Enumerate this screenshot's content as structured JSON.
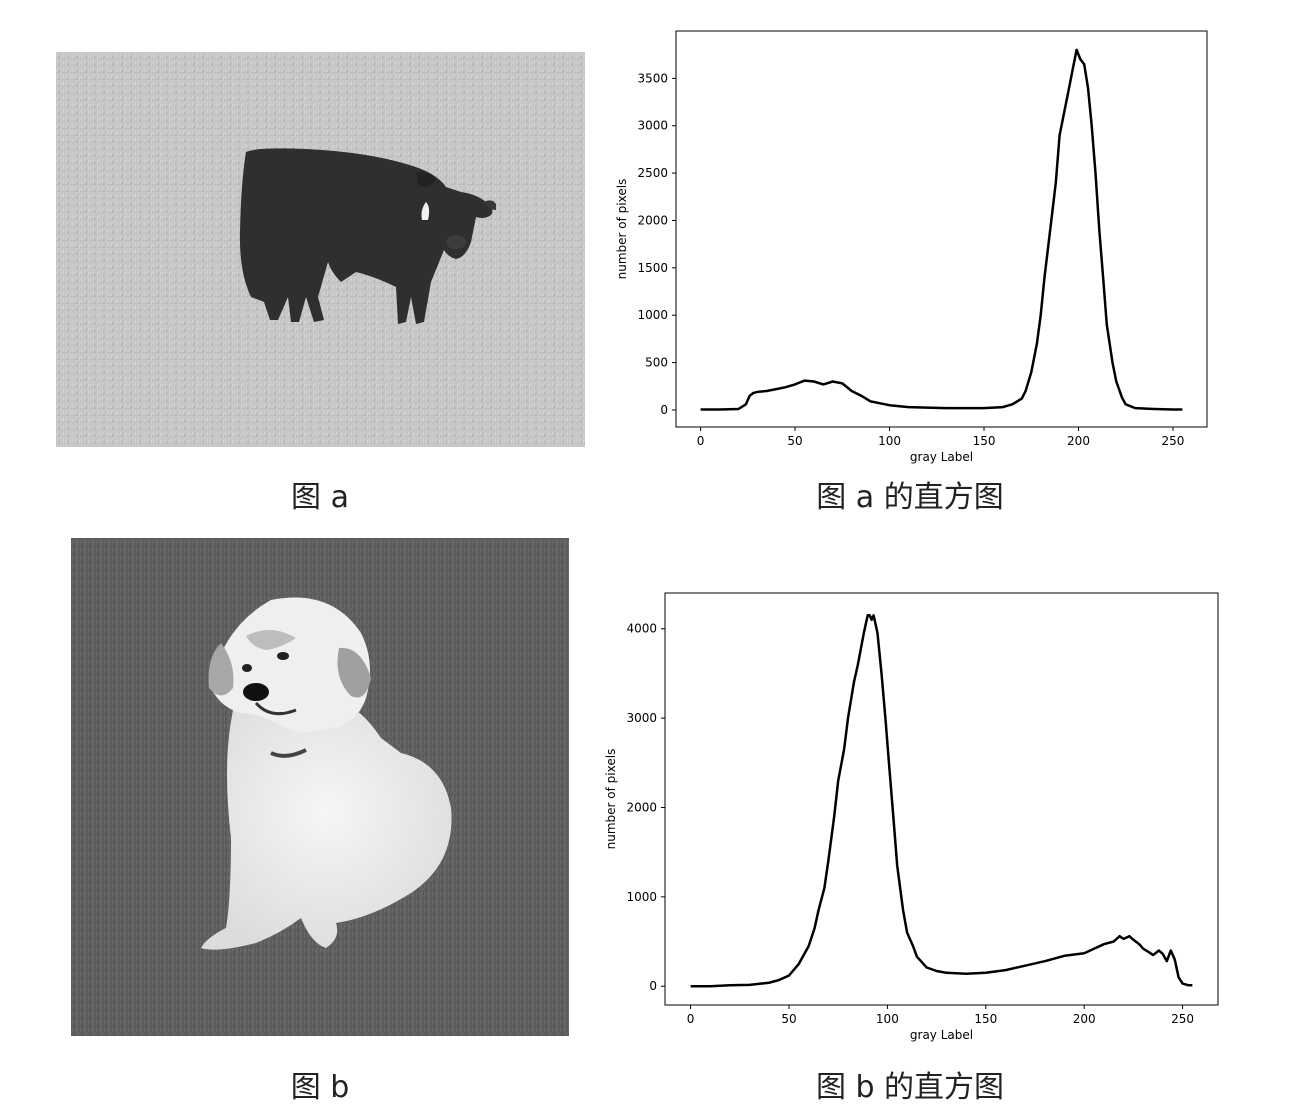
{
  "figures": [
    {
      "caption": "图 a",
      "hist_caption": "图 a 的直方图",
      "photo_icon": "cow-in-field-grayscale-photo"
    },
    {
      "caption": "图 b",
      "hist_caption": "图 b 的直方图",
      "photo_icon": "puppy-on-grass-grayscale-photo"
    }
  ],
  "chart_data": [
    {
      "type": "line",
      "xlabel": "gray Label",
      "ylabel": "number of pixels",
      "xlim": [
        -13,
        268
      ],
      "ylim": [
        -180,
        4000
      ],
      "xticks": [
        0,
        50,
        100,
        150,
        200,
        250
      ],
      "yticks": [
        0,
        500,
        1000,
        1500,
        2000,
        2500,
        3000,
        3500
      ],
      "grid": false,
      "line_color": "#000000",
      "series": [
        {
          "x": [
            0,
            10,
            20,
            24,
            26,
            28,
            30,
            35,
            40,
            45,
            50,
            55,
            60,
            65,
            70,
            75,
            80,
            85,
            90,
            95,
            100,
            110,
            120,
            130,
            140,
            150,
            160,
            165,
            170,
            172,
            175,
            178,
            180,
            182,
            185,
            188,
            190,
            193,
            195,
            197,
            199,
            201,
            203,
            205,
            207,
            209,
            211,
            213,
            215,
            218,
            220,
            223,
            225,
            230,
            240,
            250,
            255
          ],
          "y": [
            5,
            5,
            10,
            60,
            150,
            180,
            190,
            200,
            220,
            240,
            270,
            310,
            300,
            270,
            300,
            280,
            200,
            150,
            90,
            70,
            50,
            30,
            25,
            20,
            20,
            20,
            30,
            60,
            120,
            200,
            400,
            700,
            1000,
            1400,
            1900,
            2400,
            2900,
            3200,
            3400,
            3600,
            3800,
            3700,
            3650,
            3400,
            3000,
            2500,
            1900,
            1400,
            900,
            500,
            300,
            130,
            60,
            20,
            10,
            5,
            5
          ]
        }
      ]
    },
    {
      "type": "line",
      "xlabel": "gray Label",
      "ylabel": "number of pixels",
      "xlim": [
        -13,
        268
      ],
      "ylim": [
        -210,
        4400
      ],
      "xticks": [
        0,
        50,
        100,
        150,
        200,
        250
      ],
      "yticks": [
        0,
        1000,
        2000,
        3000,
        4000
      ],
      "grid": false,
      "line_color": "#000000",
      "series": [
        {
          "x": [
            0,
            10,
            20,
            30,
            40,
            45,
            50,
            55,
            60,
            63,
            65,
            68,
            70,
            73,
            75,
            78,
            80,
            83,
            85,
            88,
            90,
            91,
            92,
            93,
            94,
            95,
            97,
            99,
            101,
            103,
            105,
            108,
            110,
            113,
            115,
            120,
            125,
            130,
            140,
            150,
            160,
            170,
            180,
            190,
            200,
            205,
            210,
            215,
            218,
            220,
            223,
            225,
            228,
            230,
            233,
            235,
            238,
            240,
            242,
            244,
            246,
            248,
            250,
            253,
            255
          ],
          "y": [
            0,
            0,
            10,
            15,
            40,
            70,
            120,
            250,
            450,
            650,
            850,
            1100,
            1400,
            1900,
            2300,
            2650,
            3000,
            3400,
            3600,
            3950,
            4150,
            4150,
            4100,
            4150,
            4050,
            3950,
            3500,
            3000,
            2450,
            1900,
            1350,
            850,
            600,
            450,
            330,
            210,
            170,
            150,
            140,
            150,
            180,
            230,
            280,
            340,
            370,
            420,
            470,
            500,
            560,
            530,
            560,
            520,
            470,
            420,
            380,
            350,
            400,
            360,
            280,
            400,
            300,
            100,
            30,
            10,
            10
          ]
        }
      ]
    }
  ]
}
